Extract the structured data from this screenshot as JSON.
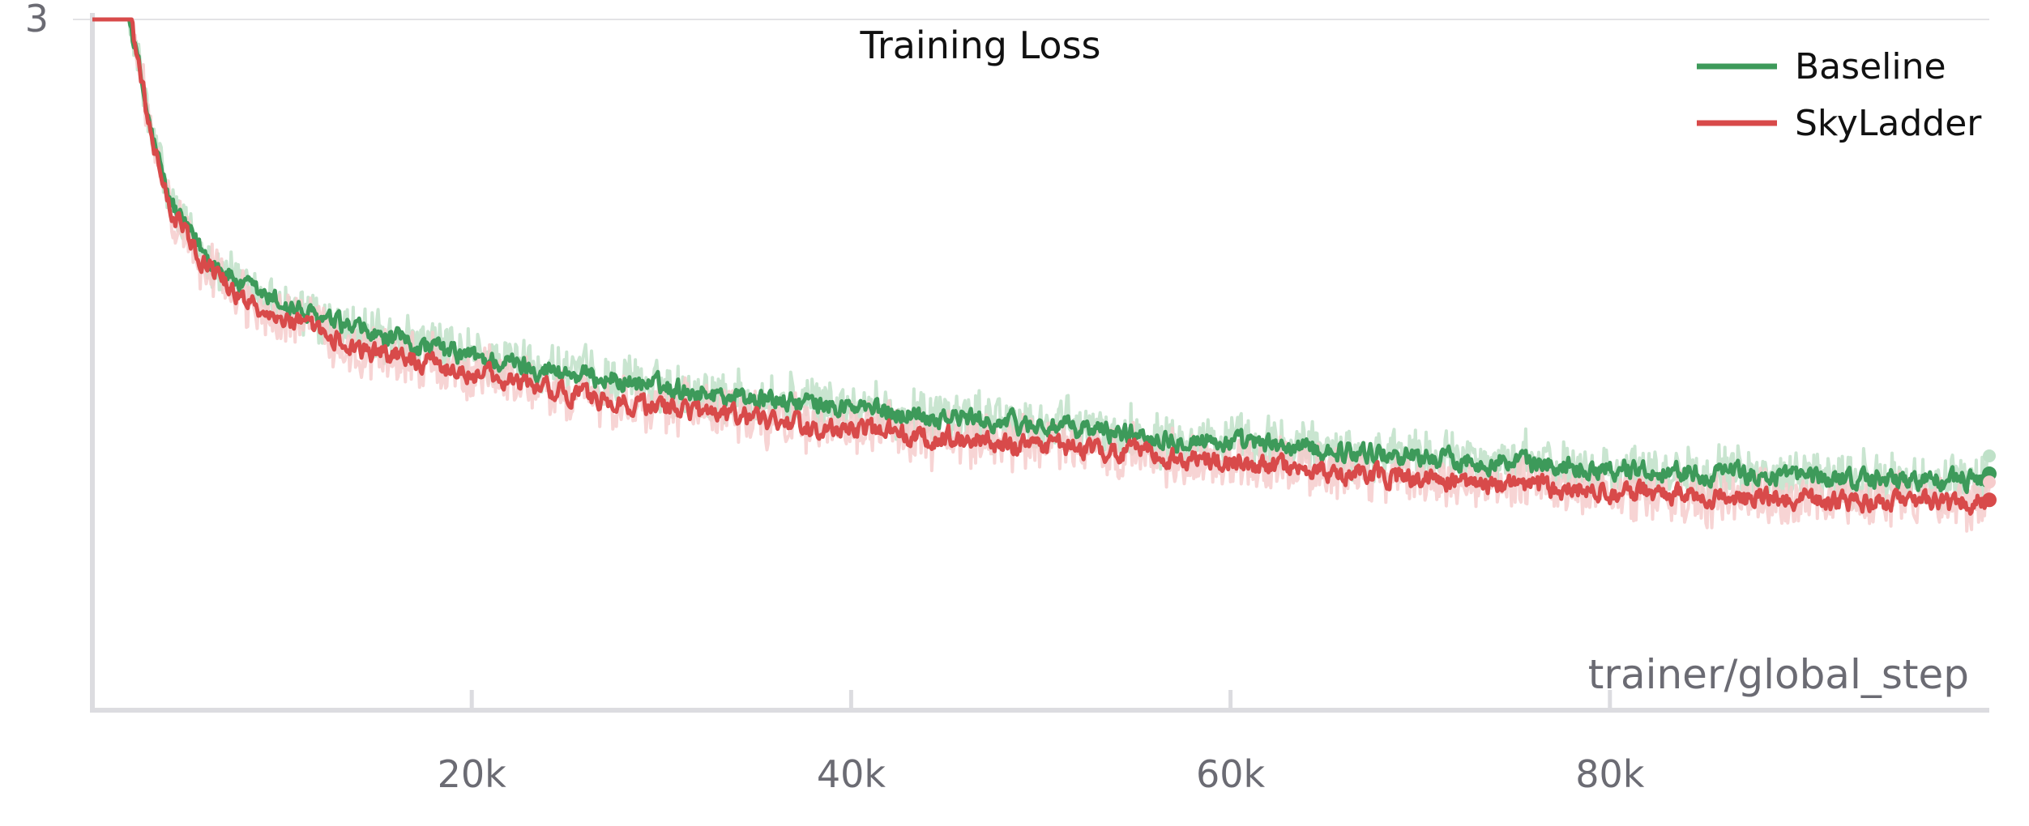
{
  "chart_data": {
    "type": "line",
    "title": "Training Loss",
    "xlabel": "trainer/global_step",
    "ylabel": "",
    "x_ticks": [
      {
        "value": 20000,
        "label": "20k"
      },
      {
        "value": 40000,
        "label": "40k"
      },
      {
        "value": 60000,
        "label": "60k"
      },
      {
        "value": 80000,
        "label": "80k"
      }
    ],
    "y_ticks": [
      {
        "value": 3,
        "label": "3"
      }
    ],
    "xlim": [
      0,
      100000
    ],
    "ylim": [
      2.15,
      3.0
    ],
    "grid": "horizontal line at top tick only",
    "legend_position": "top-right",
    "series": [
      {
        "name": "Baseline",
        "color": "#3d9a5a",
        "shade_color": "#bfe1c8",
        "x": [
          0,
          1000,
          2000,
          3000,
          4000,
          5000,
          6000,
          7000,
          8000,
          10000,
          12000,
          15000,
          18000,
          20000,
          25000,
          30000,
          35000,
          40000,
          45000,
          50000,
          55000,
          60000,
          65000,
          70000,
          75000,
          80000,
          85000,
          90000,
          95000,
          98000,
          100000
        ],
        "values": [
          3.0,
          3.0,
          3.0,
          2.87,
          2.78,
          2.74,
          2.71,
          2.69,
          2.67,
          2.65,
          2.63,
          2.61,
          2.595,
          2.585,
          2.565,
          2.548,
          2.533,
          2.522,
          2.511,
          2.5,
          2.49,
          2.479,
          2.47,
          2.462,
          2.454,
          2.448,
          2.442,
          2.437,
          2.434,
          2.432,
          2.438
        ]
      },
      {
        "name": "SkyLadder",
        "color": "#d84a4a",
        "shade_color": "#f6cccc",
        "x": [
          0,
          1000,
          2000,
          3000,
          4000,
          5000,
          6000,
          7000,
          8000,
          10000,
          12000,
          15000,
          18000,
          20000,
          25000,
          30000,
          35000,
          40000,
          45000,
          50000,
          55000,
          60000,
          65000,
          70000,
          75000,
          80000,
          85000,
          90000,
          95000,
          98000,
          100000
        ],
        "values": [
          3.0,
          3.0,
          3.0,
          2.87,
          2.77,
          2.73,
          2.7,
          2.675,
          2.655,
          2.635,
          2.612,
          2.59,
          2.575,
          2.565,
          2.54,
          2.522,
          2.507,
          2.495,
          2.486,
          2.475,
          2.465,
          2.455,
          2.444,
          2.434,
          2.426,
          2.419,
          2.413,
          2.408,
          2.405,
          2.402,
          2.41
        ]
      }
    ]
  }
}
